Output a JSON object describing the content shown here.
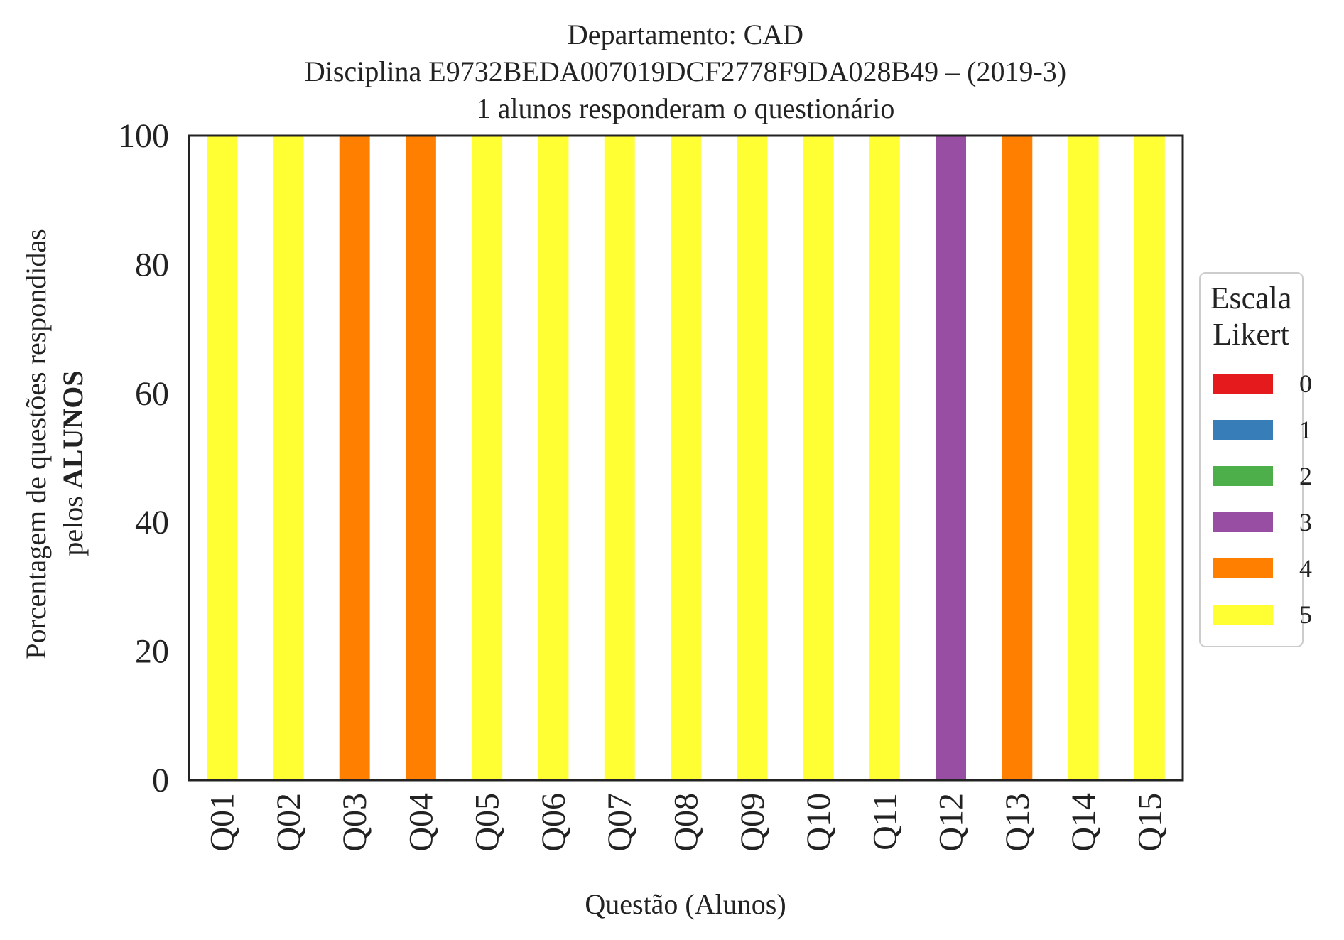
{
  "chart_data": {
    "type": "bar",
    "stacked": true,
    "title": [
      "Departamento: CAD",
      "Disciplina E9732BEDA007019DCF2778F9DA028B49 – (2019-3)",
      "1 alunos responderam o questionário"
    ],
    "xlabel": "Questão (Alunos)",
    "ylabel_line1": "Porcentagem de questões respondidas",
    "ylabel_line2_prefix": "pelos ",
    "ylabel_line2_bold": "ALUNOS",
    "ylim": [
      0,
      100
    ],
    "yticks": [
      "0",
      "20",
      "40",
      "60",
      "80",
      "100"
    ],
    "grid": false,
    "categories": [
      "Q01",
      "Q02",
      "Q03",
      "Q04",
      "Q05",
      "Q06",
      "Q07",
      "Q08",
      "Q09",
      "Q10",
      "Q11",
      "Q12",
      "Q13",
      "Q14",
      "Q15"
    ],
    "legend": {
      "title_line1": "Escala",
      "title_line2": "Likert",
      "placement": "right-center outside"
    },
    "series": [
      {
        "name": "0",
        "color": "#e41a1c",
        "values": [
          0,
          0,
          0,
          0,
          0,
          0,
          0,
          0,
          0,
          0,
          0,
          0,
          0,
          0,
          0
        ]
      },
      {
        "name": "1",
        "color": "#377eb8",
        "values": [
          0,
          0,
          0,
          0,
          0,
          0,
          0,
          0,
          0,
          0,
          0,
          0,
          0,
          0,
          0
        ]
      },
      {
        "name": "2",
        "color": "#4daf4a",
        "values": [
          0,
          0,
          0,
          0,
          0,
          0,
          0,
          0,
          0,
          0,
          0,
          0,
          0,
          0,
          0
        ]
      },
      {
        "name": "3",
        "color": "#984ea3",
        "values": [
          0,
          0,
          0,
          0,
          0,
          0,
          0,
          0,
          0,
          0,
          0,
          100,
          0,
          0,
          0
        ]
      },
      {
        "name": "4",
        "color": "#ff7f00",
        "values": [
          0,
          0,
          100,
          100,
          0,
          0,
          0,
          0,
          0,
          0,
          0,
          0,
          100,
          0,
          0
        ]
      },
      {
        "name": "5",
        "color": "#ffff33",
        "values": [
          100,
          100,
          0,
          0,
          100,
          100,
          100,
          100,
          100,
          100,
          100,
          0,
          0,
          100,
          100
        ]
      }
    ]
  }
}
